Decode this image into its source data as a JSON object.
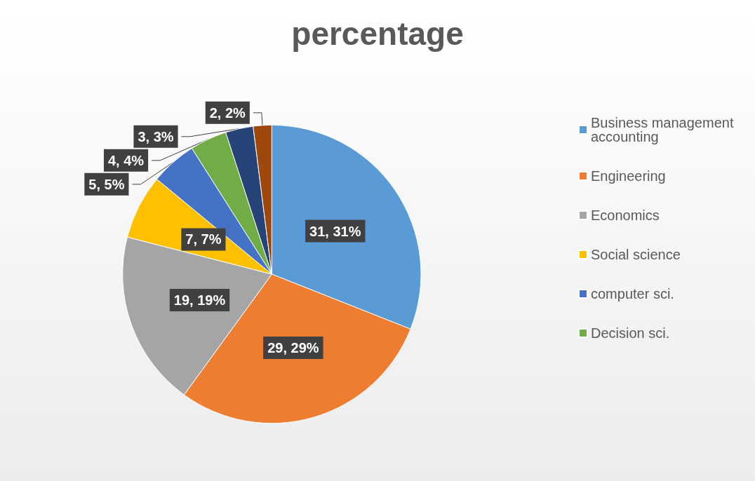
{
  "chart_data": {
    "type": "pie",
    "title": "percentage",
    "categories": [
      "Business management accounting",
      "Engineering",
      "Economics",
      "Social science",
      "computer sci.",
      "Decision sci.",
      null,
      null
    ],
    "values": [
      31,
      29,
      19,
      7,
      5,
      4,
      3,
      2
    ],
    "colors": [
      "#5b9bd5",
      "#ed7d31",
      "#a5a5a5",
      "#ffc000",
      "#4472c4",
      "#70ad47",
      "#264478",
      "#9e480e"
    ],
    "value_labels": [
      "31, 31%",
      "29, 29%",
      "19, 19%",
      "7, 7%",
      "5, 5%",
      "4, 4%",
      "3, 3%",
      "2, 2%"
    ],
    "legend": "right"
  }
}
